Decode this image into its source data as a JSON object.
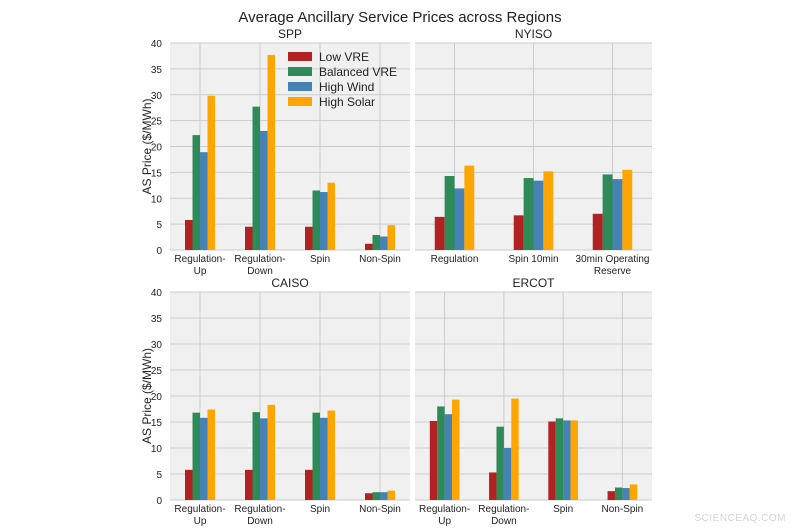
{
  "chart_data": {
    "title": "Average Ancillary Service Prices across Regions",
    "type": "bar",
    "ylabel": "AS Price ($/MWh)",
    "ylim": [
      0,
      40
    ],
    "yticks": [
      "0",
      "5",
      "10",
      "15",
      "20",
      "25",
      "30",
      "35",
      "40"
    ],
    "grid": true,
    "legend": {
      "placement": "top-right of SPP panel",
      "entries": [
        "Low VRE",
        "Balanced VRE",
        "High Wind",
        "High Solar"
      ]
    },
    "series_colors": [
      "#b22222",
      "#2e8b57",
      "#4682b4",
      "#ffa500"
    ],
    "panels": [
      {
        "title": "SPP",
        "categories": [
          "Regulation-\nUp",
          "Regulation-\nDown",
          "Spin",
          "Non-Spin"
        ],
        "series": [
          {
            "name": "Low VRE",
            "values": [
              5.8,
              4.5,
              4.5,
              1.2
            ]
          },
          {
            "name": "Balanced VRE",
            "values": [
              22.2,
              27.7,
              11.5,
              2.9
            ]
          },
          {
            "name": "High Wind",
            "values": [
              18.9,
              23.0,
              11.2,
              2.6
            ]
          },
          {
            "name": "High Solar",
            "values": [
              29.8,
              37.7,
              13.0,
              4.8
            ]
          }
        ]
      },
      {
        "title": "NYISO",
        "categories": [
          "Regulation",
          "Spin 10min",
          "30min Operating\nReserve"
        ],
        "series": [
          {
            "name": "Low VRE",
            "values": [
              6.4,
              6.7,
              7.0
            ]
          },
          {
            "name": "Balanced VRE",
            "values": [
              14.3,
              13.9,
              14.6
            ]
          },
          {
            "name": "High Wind",
            "values": [
              11.9,
              13.4,
              13.7
            ]
          },
          {
            "name": "High Solar",
            "values": [
              16.3,
              15.2,
              15.5
            ]
          }
        ]
      },
      {
        "title": "CAISO",
        "categories": [
          "Regulation-\nUp",
          "Regulation-\nDown",
          "Spin",
          "Non-Spin"
        ],
        "series": [
          {
            "name": "Low VRE",
            "values": [
              5.8,
              5.8,
              5.8,
              1.3
            ]
          },
          {
            "name": "Balanced VRE",
            "values": [
              16.8,
              16.9,
              16.8,
              1.5
            ]
          },
          {
            "name": "High Wind",
            "values": [
              15.8,
              15.7,
              15.8,
              1.5
            ]
          },
          {
            "name": "High Solar",
            "values": [
              17.4,
              18.3,
              17.2,
              1.8
            ]
          }
        ]
      },
      {
        "title": "ERCOT",
        "categories": [
          "Regulation-\nUp",
          "Regulation-\nDown",
          "Spin",
          "Non-Spin"
        ],
        "series": [
          {
            "name": "Low VRE",
            "values": [
              15.2,
              5.3,
              15.1,
              1.7
            ]
          },
          {
            "name": "Balanced VRE",
            "values": [
              18.0,
              14.1,
              15.7,
              2.4
            ]
          },
          {
            "name": "High Wind",
            "values": [
              16.5,
              10.0,
              15.3,
              2.3
            ]
          },
          {
            "name": "High Solar",
            "values": [
              19.3,
              19.5,
              15.3,
              3.0
            ]
          }
        ]
      }
    ]
  },
  "watermark": "SCIENCEAQ.COM"
}
